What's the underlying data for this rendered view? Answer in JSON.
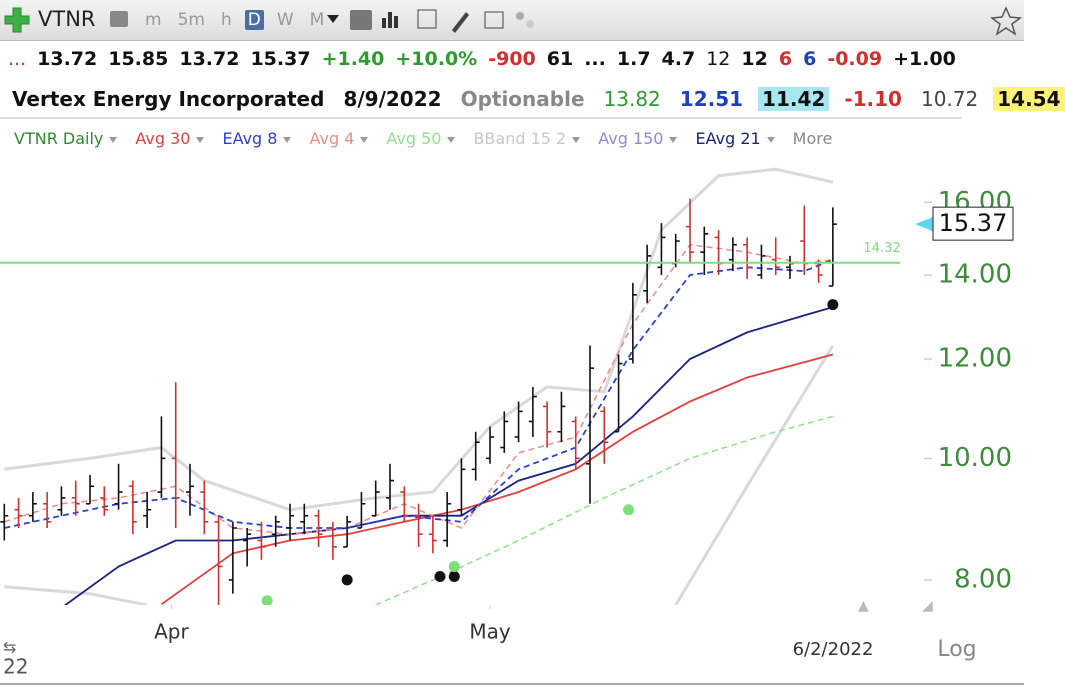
{
  "toolbar": {
    "symbol": "VTNR",
    "buttons": [
      "m",
      "5m",
      "h",
      "D",
      "W",
      "M"
    ],
    "active": 3
  },
  "quote_row": [
    {
      "text": "...",
      "color": "#d32f2f",
      "bold": false
    },
    {
      "text": "13.72",
      "color": "#111111",
      "bold": true
    },
    {
      "text": "15.85",
      "color": "#111111",
      "bold": true
    },
    {
      "text": "13.72",
      "color": "#111111",
      "bold": true
    },
    {
      "text": "15.37",
      "color": "#111111",
      "bold": true
    },
    {
      "text": "+1.40",
      "color": "#2e9b2e",
      "bold": true
    },
    {
      "text": "+10.0%",
      "color": "#2e9b2e",
      "bold": true
    },
    {
      "text": "-900",
      "color": "#d32f2f",
      "bold": true
    },
    {
      "text": "61",
      "color": "#111111",
      "bold": true
    },
    {
      "text": "...",
      "color": "#111111",
      "bold": true
    },
    {
      "text": "1.7",
      "color": "#111111",
      "bold": true
    },
    {
      "text": "4.7",
      "color": "#111111",
      "bold": true
    },
    {
      "text": "12",
      "color": "#111111",
      "bold": false
    },
    {
      "text": "12",
      "color": "#111111",
      "bold": true
    },
    {
      "text": "6",
      "color": "#d32f2f",
      "bold": true
    },
    {
      "text": "6",
      "color": "#1f3fbf",
      "bold": true
    },
    {
      "text": "-0.09",
      "color": "#d32f2f",
      "bold": true
    },
    {
      "text": "+1.00",
      "color": "#111111",
      "bold": true
    }
  ],
  "info_row": [
    {
      "text": "Vertex Energy Incorporated",
      "color": "#111111",
      "bold": true,
      "bg": "transparent"
    },
    {
      "text": "8/9/2022",
      "color": "#111111",
      "bold": true,
      "bg": "transparent"
    },
    {
      "text": "Optionable",
      "color": "#888888",
      "bold": true,
      "bg": "transparent"
    },
    {
      "text": "13.82",
      "color": "#2e9b2e",
      "bold": false,
      "bg": "transparent"
    },
    {
      "text": "12.51",
      "color": "#1f3fbf",
      "bold": true,
      "bg": "transparent"
    },
    {
      "text": "11.42",
      "color": "#111111",
      "bold": true,
      "bg": "#a8e6f0"
    },
    {
      "text": "-1.10",
      "color": "#d32f2f",
      "bold": true,
      "bg": "transparent"
    },
    {
      "text": "10.72",
      "color": "#444444",
      "bold": false,
      "bg": "transparent"
    },
    {
      "text": "14.54",
      "color": "#111111",
      "bold": true,
      "bg": "#fff27a"
    }
  ],
  "chart_data": {
    "type": "ohlc",
    "log_scale": true,
    "ylim": [
      7.64,
      17.45
    ],
    "yticks": [
      {
        "value": 8,
        "label": "8.00"
      },
      {
        "value": 10,
        "label": "10.00"
      },
      {
        "value": 12,
        "label": "12.00"
      },
      {
        "value": 14,
        "label": "14.00"
      },
      {
        "value": 16,
        "label": "16.00"
      }
    ],
    "xlim": [
      -0.3,
      62.7
    ],
    "xticks": [
      {
        "value": 11.7,
        "label": "Apr"
      },
      {
        "value": 34,
        "label": "May"
      }
    ],
    "legend": [
      {
        "name": "VTNR Daily",
        "color": "#2e8b2e"
      },
      {
        "name": "Avg 30",
        "color": "#e04040"
      },
      {
        "name": "EAvg 8",
        "color": "#2b3fd6"
      },
      {
        "name": "Avg 4",
        "color": "#f08a8a"
      },
      {
        "name": "Avg 50",
        "color": "#8fe08f"
      },
      {
        "name": "BBand 15 2",
        "color": "#c8c8c8"
      },
      {
        "name": "Avg 150",
        "color": "#8a8ae0"
      },
      {
        "name": "EAvg 21",
        "color": "#1a237e"
      },
      {
        "name": "More",
        "color": "#888888"
      }
    ],
    "ohlc": {
      "open": [
        8.9,
        9.1,
        9.0,
        9.2,
        9.1,
        9.3,
        9.2,
        9.3,
        9.2,
        9.5,
        9.0,
        9.4,
        10.0,
        9.4,
        9.4,
        8.9,
        8.0,
        8.6,
        8.6,
        8.7,
        8.8,
        8.9,
        9.0,
        8.8,
        8.5,
        8.8,
        9.0,
        9.3,
        9.4,
        9.0,
        8.7,
        8.6,
        9.1,
        9.8,
        10.0,
        10.2,
        10.4,
        10.7,
        11.0,
        10.5,
        10.7,
        9.9,
        10.9,
        10.5,
        12.0,
        13.6,
        14.2,
        14.3,
        15.3,
        14.6,
        15.0,
        14.4,
        14.8,
        14.0,
        14.4,
        14.2,
        14.9,
        14.3,
        13.72
      ],
      "high": [
        9.2,
        9.3,
        9.4,
        9.4,
        9.5,
        9.6,
        9.7,
        9.5,
        9.9,
        9.6,
        9.4,
        10.8,
        11.5,
        9.9,
        9.6,
        9.0,
        8.9,
        8.8,
        8.9,
        9.0,
        9.2,
        9.2,
        9.1,
        8.9,
        9.0,
        9.4,
        9.6,
        9.9,
        9.5,
        9.2,
        9.0,
        9.4,
        10.0,
        10.5,
        10.6,
        10.9,
        11.1,
        11.4,
        11.1,
        11.3,
        10.8,
        12.3,
        11.0,
        12.1,
        13.8,
        14.8,
        15.4,
        15.1,
        16.1,
        15.3,
        15.2,
        15.0,
        15.0,
        14.8,
        15.0,
        14.5,
        15.9,
        14.4,
        15.85
      ],
      "low": [
        8.6,
        8.8,
        8.9,
        8.8,
        9.0,
        9.0,
        9.2,
        9.0,
        9.1,
        8.7,
        8.8,
        9.3,
        8.8,
        9.0,
        8.7,
        7.64,
        7.8,
        8.2,
        8.3,
        8.5,
        8.6,
        8.7,
        8.5,
        8.3,
        8.5,
        8.8,
        9.0,
        9.1,
        8.9,
        8.5,
        8.4,
        8.5,
        9.0,
        9.6,
        9.9,
        10.1,
        10.3,
        10.4,
        10.2,
        10.3,
        9.8,
        9.2,
        9.9,
        10.5,
        11.9,
        13.3,
        14.0,
        14.2,
        14.3,
        14.0,
        14.0,
        14.1,
        13.9,
        13.9,
        14.0,
        13.9,
        14.0,
        13.8,
        13.72
      ],
      "close": [
        9.0,
        9.0,
        9.2,
        8.9,
        9.3,
        9.2,
        9.5,
        9.1,
        9.4,
        8.9,
        9.1,
        10.0,
        9.3,
        9.5,
        8.9,
        8.2,
        8.8,
        8.7,
        8.5,
        8.9,
        9.0,
        9.0,
        8.7,
        8.5,
        8.9,
        9.2,
        9.4,
        9.6,
        9.0,
        8.7,
        8.6,
        9.2,
        9.8,
        10.3,
        10.4,
        10.7,
        10.9,
        11.2,
        10.5,
        11.0,
        10.0,
        11.8,
        10.3,
        11.9,
        13.5,
        14.5,
        15.0,
        14.9,
        14.6,
        15.1,
        14.3,
        14.8,
        14.2,
        14.5,
        14.2,
        14.3,
        14.3,
        14.0,
        15.37
      ],
      "up_color": "#111111",
      "down_color": "#d32f2f"
    },
    "lines": [
      {
        "legend": 5,
        "color": "#d9d9d9",
        "dash": false,
        "width": 3,
        "x": [
          0,
          6,
          11,
          14,
          20,
          26,
          30,
          34,
          38,
          42,
          46,
          50,
          54,
          58
        ],
        "values": [
          9.8,
          10.0,
          10.2,
          9.6,
          9.1,
          9.3,
          9.4,
          10.6,
          11.4,
          11.3,
          15.2,
          16.8,
          17.0,
          16.6
        ]
      },
      {
        "legend": 5,
        "color": "#d9d9d9",
        "dash": false,
        "width": 3,
        "x": [
          0,
          6,
          10,
          30,
          47,
          52,
          58
        ],
        "values": [
          7.9,
          7.8,
          7.64,
          null,
          7.64,
          9.5,
          12.3
        ]
      },
      {
        "legend": 4,
        "color": "#8fe08f",
        "dash": true,
        "width": 1.5,
        "x": [
          26,
          30,
          36,
          42,
          48,
          54,
          58
        ],
        "values": [
          7.64,
          8.0,
          8.6,
          9.3,
          10.0,
          10.5,
          10.8
        ]
      },
      {
        "legend": 1,
        "color": "#e04040",
        "dash": false,
        "width": 1.8,
        "x": [
          11,
          16,
          20,
          24,
          28,
          32,
          36,
          40,
          44,
          48,
          52,
          58
        ],
        "values": [
          7.65,
          8.4,
          8.6,
          8.7,
          8.9,
          9.1,
          9.4,
          9.8,
          10.5,
          11.1,
          11.6,
          12.1
        ]
      },
      {
        "legend": 7,
        "color": "#1a237e",
        "dash": false,
        "width": 1.8,
        "x": [
          4,
          8,
          12,
          16,
          20,
          24,
          28,
          32,
          36,
          40,
          44,
          48,
          52,
          56,
          58
        ],
        "values": [
          7.6,
          8.2,
          8.6,
          8.6,
          8.7,
          8.8,
          9.0,
          9.0,
          9.6,
          9.9,
          10.8,
          12.0,
          12.6,
          13.0,
          13.2
        ]
      },
      {
        "legend": 3,
        "color": "#f08a8a",
        "dash": true,
        "width": 1.5,
        "x": [
          0,
          4,
          8,
          12,
          16,
          20,
          24,
          28,
          32,
          36,
          40,
          44,
          48,
          52,
          56,
          58
        ],
        "values": [
          8.9,
          9.2,
          9.3,
          9.5,
          8.8,
          8.7,
          8.8,
          9.2,
          8.8,
          10.1,
          10.4,
          12.8,
          14.8,
          14.6,
          14.3,
          14.4
        ]
      },
      {
        "legend": 2,
        "color": "#2b3fd6",
        "dash": true,
        "width": 1.8,
        "x": [
          0,
          4,
          8,
          12,
          16,
          20,
          24,
          28,
          32,
          36,
          40,
          44,
          48,
          52,
          56,
          58
        ],
        "values": [
          8.8,
          9.0,
          9.2,
          9.3,
          8.9,
          8.8,
          8.8,
          9.0,
          8.9,
          9.8,
          10.2,
          12.2,
          14.0,
          14.2,
          14.1,
          14.4
        ]
      }
    ],
    "markers": [
      {
        "color": "#111111",
        "x": [
          24,
          30.5,
          31.5,
          58
        ],
        "values": [
          8.0,
          8.05,
          8.05,
          13.26
        ]
      },
      {
        "color": "#7be07b",
        "x": [
          18.4,
          31.5,
          43.7
        ],
        "values": [
          7.7,
          8.2,
          9.1
        ]
      }
    ],
    "reference_line": {
      "value": 14.32,
      "color": "#7be07b"
    },
    "last_price": {
      "value": 15.37,
      "color": "#5fd8ee"
    },
    "cursor_date": "6/2/2022",
    "scale_button": "Log",
    "year_label": "22"
  }
}
